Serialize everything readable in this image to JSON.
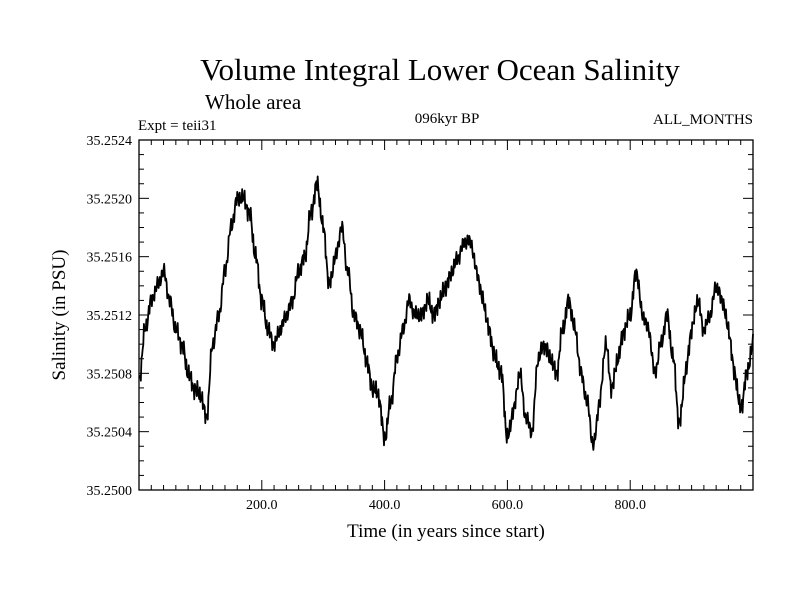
{
  "chart_data": {
    "type": "line",
    "title": "Volume Integral Lower Ocean Salinity",
    "subtitle": "Whole area",
    "experiment": "Expt = teii31",
    "period": "096kyr BP",
    "months": "ALL_MONTHS",
    "xlabel": "Time (in years since start)",
    "ylabel": "Salinity (in PSU)",
    "xlim": [
      0,
      1000
    ],
    "ylim": [
      35.25,
      35.2524
    ],
    "x_ticks": [
      200,
      400,
      600,
      800
    ],
    "x_tick_labels": [
      "200.0",
      "400.0",
      "600.0",
      "800.0"
    ],
    "y_ticks": [
      35.25,
      35.2504,
      35.2508,
      35.2512,
      35.2516,
      35.252,
      35.2524
    ],
    "y_tick_labels": [
      "35.2500",
      "35.2504",
      "35.2508",
      "35.2512",
      "35.2516",
      "35.2520",
      "35.2524"
    ],
    "grid": false,
    "series": [
      {
        "x": [
          0,
          10,
          20,
          30,
          40,
          50,
          60,
          70,
          80,
          90,
          100,
          110,
          120,
          130,
          140,
          150,
          160,
          170,
          180,
          190,
          200,
          210,
          220,
          230,
          240,
          250,
          260,
          270,
          280,
          290,
          300,
          310,
          320,
          330,
          340,
          350,
          360,
          370,
          380,
          390,
          400,
          410,
          420,
          430,
          440,
          450,
          460,
          470,
          480,
          490,
          500,
          510,
          520,
          530,
          540,
          550,
          560,
          570,
          580,
          590,
          600,
          610,
          620,
          630,
          640,
          650,
          660,
          670,
          680,
          690,
          700,
          710,
          720,
          730,
          740,
          750,
          760,
          770,
          780,
          790,
          800,
          810,
          820,
          830,
          840,
          850,
          860,
          870,
          880,
          890,
          900,
          910,
          920,
          930,
          940,
          950,
          960,
          970,
          980,
          990,
          1000
        ],
        "values": [
          35.25075,
          35.2511,
          35.2513,
          35.2514,
          35.2515,
          35.2513,
          35.2511,
          35.251,
          35.2508,
          35.2507,
          35.25065,
          35.2505,
          35.251,
          35.2512,
          35.2515,
          35.2518,
          35.252,
          35.252,
          35.2519,
          35.2516,
          35.2513,
          35.2511,
          35.251,
          35.2511,
          35.2512,
          35.2513,
          35.2515,
          35.2516,
          35.2519,
          35.2521,
          35.2518,
          35.2514,
          35.2516,
          35.2518,
          35.2515,
          35.2512,
          35.2511,
          35.2509,
          35.2507,
          35.25065,
          35.25035,
          35.2506,
          35.2509,
          35.2511,
          35.2513,
          35.2512,
          35.2512,
          35.2513,
          35.2512,
          35.2513,
          35.2514,
          35.2515,
          35.2516,
          35.2517,
          35.2517,
          35.2515,
          35.2513,
          35.2511,
          35.2509,
          35.2508,
          35.25035,
          35.25055,
          35.2508,
          35.2505,
          35.2504,
          35.2509,
          35.251,
          35.2509,
          35.2508,
          35.2511,
          35.2513,
          35.2511,
          35.2508,
          35.2506,
          35.2503,
          35.2506,
          35.251,
          35.2507,
          35.2509,
          35.2511,
          35.2512,
          35.2515,
          35.2512,
          35.2511,
          35.2508,
          35.251,
          35.2512,
          35.2509,
          35.25045,
          35.2508,
          35.2511,
          35.2513,
          35.2511,
          35.2512,
          35.2514,
          35.2513,
          35.2511,
          35.2508,
          35.25055,
          35.2508,
          35.251
        ]
      }
    ]
  }
}
